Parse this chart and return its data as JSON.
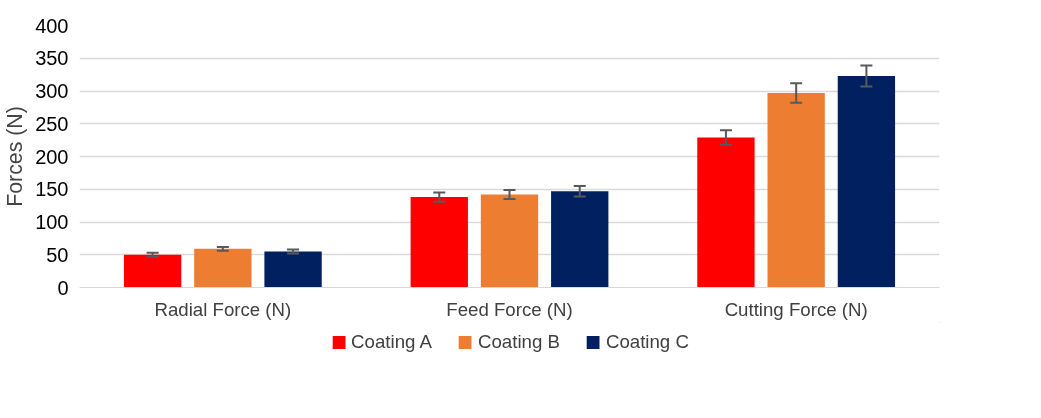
{
  "chart_data": {
    "type": "bar",
    "ylabel": "Forces (N)",
    "categories": [
      "Radial Force (N)",
      "Feed Force (N)",
      "Cutting Force (N)"
    ],
    "series": [
      {
        "name": "Coating A",
        "color": "#ff0000",
        "values": [
          50,
          138,
          229
        ],
        "errors": [
          3,
          7,
          11
        ]
      },
      {
        "name": "Coating B",
        "color": "#ed7d31",
        "values": [
          59,
          142,
          297
        ],
        "errors": [
          3,
          7,
          15
        ]
      },
      {
        "name": "Coating C",
        "color": "#002060",
        "values": [
          55,
          147,
          323
        ],
        "errors": [
          3,
          8,
          16
        ]
      }
    ],
    "ylim": [
      0,
      400
    ],
    "yticks": [
      0,
      50,
      100,
      150,
      200,
      250,
      300,
      350,
      400
    ],
    "grid": "y",
    "legend": "bottom"
  }
}
